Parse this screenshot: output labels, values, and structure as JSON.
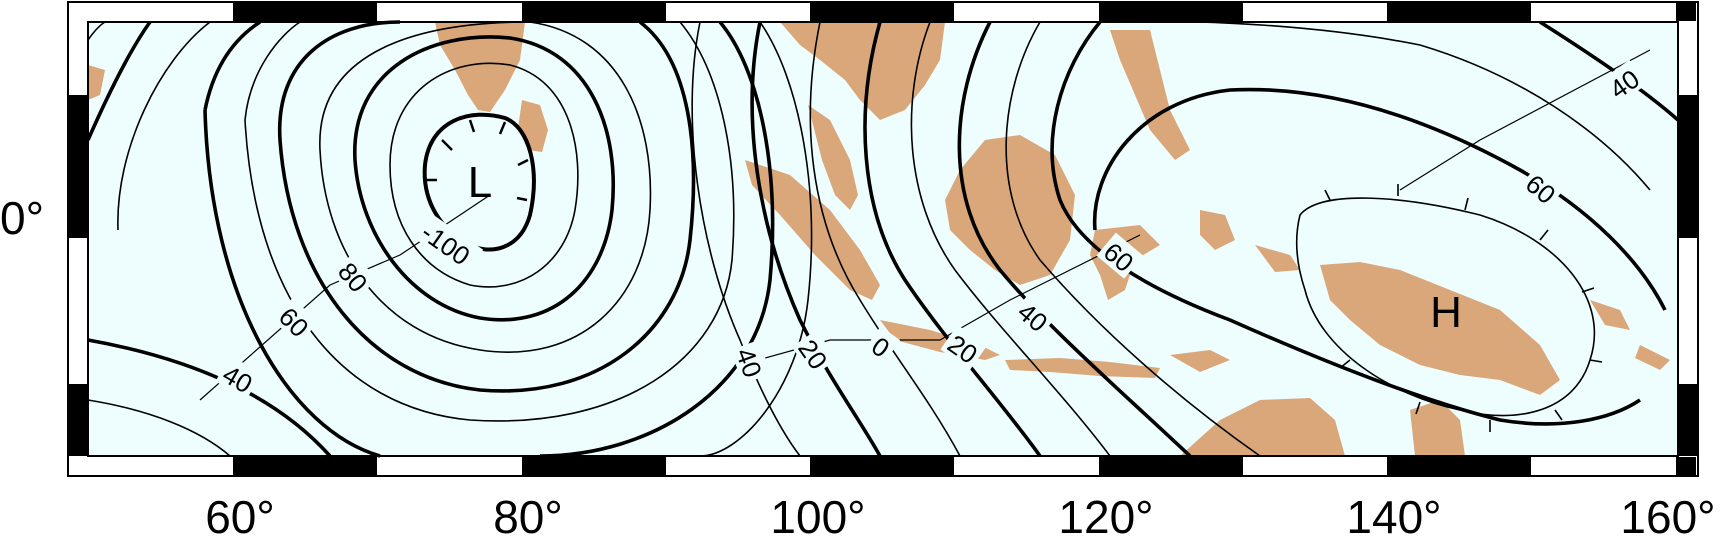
{
  "map": {
    "longitude_labels": [
      "60°",
      "80°",
      "100°",
      "120°",
      "140°",
      "160°"
    ],
    "latitude_label": "0°",
    "low_label": "L",
    "high_label": "H",
    "contour_labels": [
      {
        "text": "-100",
        "name": "contour-label-neg100"
      },
      {
        "text": "80",
        "name": "contour-label-80-west"
      },
      {
        "text": "60",
        "name": "contour-label-60-west"
      },
      {
        "text": "40",
        "name": "contour-label-40-west"
      },
      {
        "text": "40",
        "name": "contour-label-40-central"
      },
      {
        "text": "20",
        "name": "contour-label-20-central"
      },
      {
        "text": "0",
        "name": "contour-label-0"
      },
      {
        "text": "20",
        "name": "contour-label-20-east"
      },
      {
        "text": "40",
        "name": "contour-label-40-east"
      },
      {
        "text": "60",
        "name": "contour-label-60-east"
      },
      {
        "text": "60",
        "name": "contour-label-60-far-east"
      },
      {
        "text": "40",
        "name": "contour-label-40-far-east"
      }
    ],
    "colors": {
      "ocean": "#eefefe",
      "land": "#d9a77a",
      "contour": "#000000"
    }
  }
}
